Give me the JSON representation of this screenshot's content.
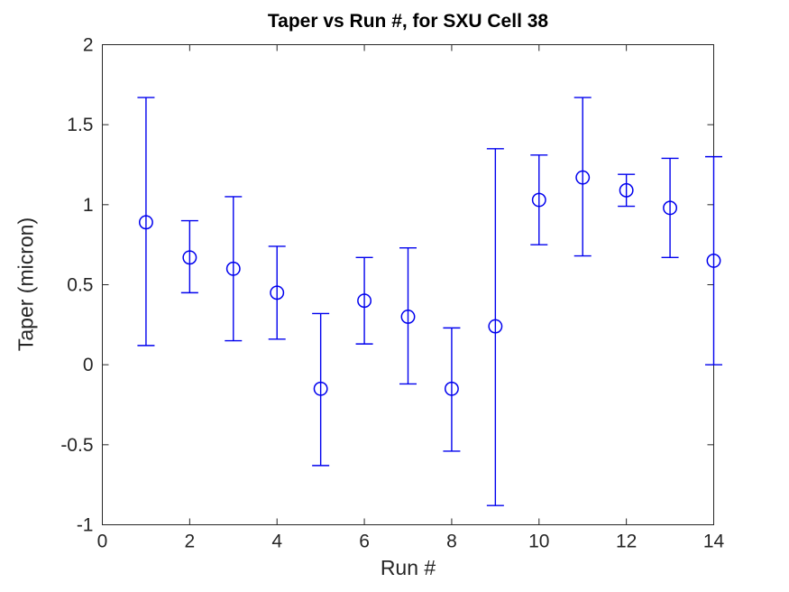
{
  "figure": {
    "kind": "matlab-errorbar-plot",
    "background": "#FFFFFF"
  },
  "chart_data": {
    "type": "scatter",
    "subtype": "errorbar",
    "title": "Taper vs Run #, for SXU Cell 38",
    "xlabel": "Run #",
    "ylabel": "Taper (micron)",
    "xlim": [
      0,
      14
    ],
    "ylim": [
      -1,
      2
    ],
    "xticks": [
      0,
      2,
      4,
      6,
      8,
      10,
      12,
      14
    ],
    "xtick_labels": [
      "0",
      "2",
      "4",
      "6",
      "8",
      "10",
      "12",
      "14"
    ],
    "yticks": [
      -1,
      -0.5,
      0,
      0.5,
      1,
      1.5,
      2
    ],
    "ytick_labels": [
      "-1",
      "-0.5",
      "0",
      "0.5",
      "1",
      "1.5",
      "2"
    ],
    "grid": false,
    "legend": null,
    "axis_color": "#262626",
    "series": [
      {
        "name": "taper",
        "marker": "open-circle",
        "color": "#0000EE",
        "points": [
          {
            "x": 1,
            "y": 0.89,
            "y_lo": 0.12,
            "y_hi": 1.67
          },
          {
            "x": 2,
            "y": 0.67,
            "y_lo": 0.45,
            "y_hi": 0.9
          },
          {
            "x": 3,
            "y": 0.6,
            "y_lo": 0.15,
            "y_hi": 1.05
          },
          {
            "x": 4,
            "y": 0.45,
            "y_lo": 0.16,
            "y_hi": 0.74
          },
          {
            "x": 5,
            "y": -0.15,
            "y_lo": -0.63,
            "y_hi": 0.32
          },
          {
            "x": 6,
            "y": 0.4,
            "y_lo": 0.13,
            "y_hi": 0.67
          },
          {
            "x": 7,
            "y": 0.3,
            "y_lo": -0.12,
            "y_hi": 0.73
          },
          {
            "x": 8,
            "y": -0.15,
            "y_lo": -0.54,
            "y_hi": 0.23
          },
          {
            "x": 9,
            "y": 0.24,
            "y_lo": -0.88,
            "y_hi": 1.35
          },
          {
            "x": 10,
            "y": 1.03,
            "y_lo": 0.75,
            "y_hi": 1.31
          },
          {
            "x": 11,
            "y": 1.17,
            "y_lo": 0.68,
            "y_hi": 1.67
          },
          {
            "x": 12,
            "y": 1.09,
            "y_lo": 0.99,
            "y_hi": 1.19
          },
          {
            "x": 13,
            "y": 0.98,
            "y_lo": 0.67,
            "y_hi": 1.29
          },
          {
            "x": 14,
            "y": 0.65,
            "y_lo": 0.0,
            "y_hi": 1.3
          }
        ]
      }
    ]
  }
}
